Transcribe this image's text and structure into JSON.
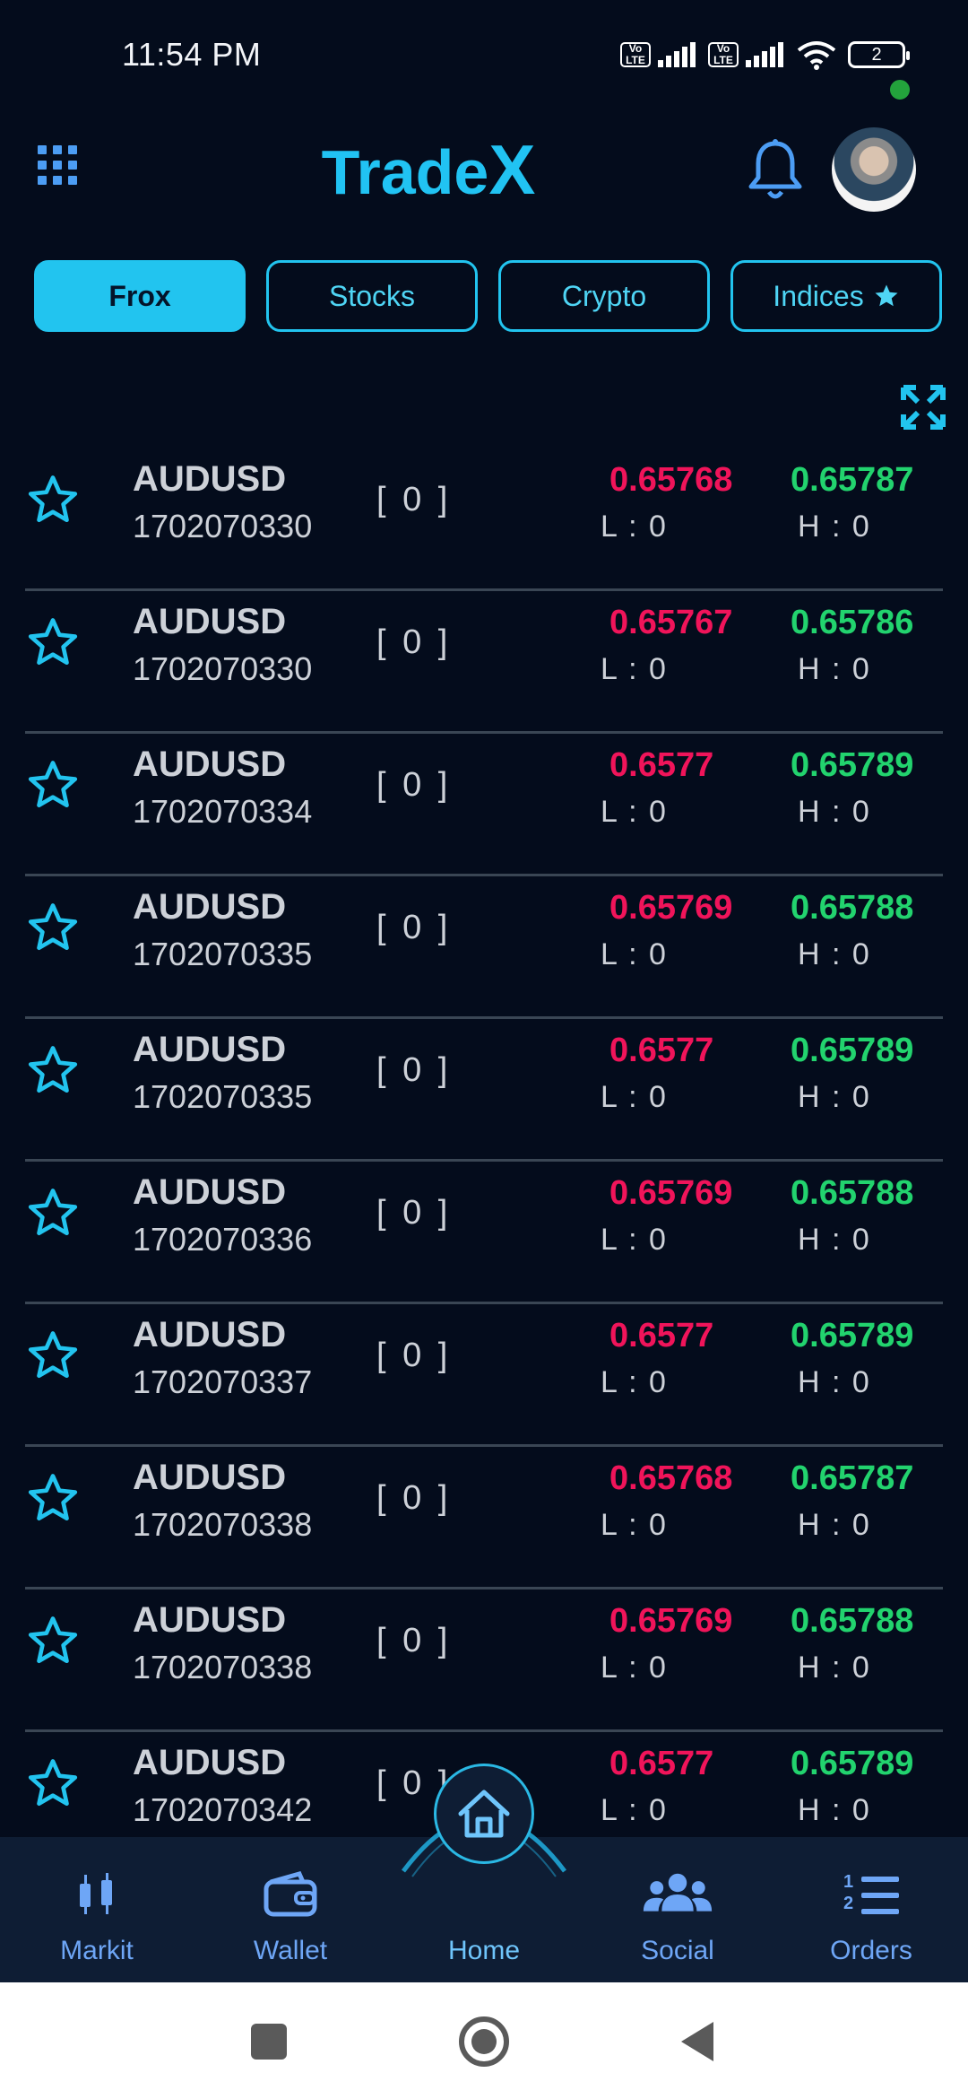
{
  "status_bar": {
    "time": "11:54 PM",
    "volte_top": "Vo",
    "volte_bottom": "LTE",
    "battery": "2"
  },
  "header": {
    "title_main": "Trade",
    "title_x": "X",
    "menu_icon": "grid-icon",
    "bell_icon": "bell-icon"
  },
  "tabs": [
    {
      "label": "Frox",
      "active": true
    },
    {
      "label": "Stocks",
      "active": false
    },
    {
      "label": "Crypto",
      "active": false
    },
    {
      "label": "Indices",
      "active": false,
      "icon": "star-icon"
    }
  ],
  "list": {
    "rows": [
      {
        "symbol": "AUDUSD",
        "timestamp": "1702070330",
        "count": "[ 0 ]",
        "bid": "0.65768",
        "ask": "0.65787",
        "low": "L : 0",
        "high": "H : 0"
      },
      {
        "symbol": "AUDUSD",
        "timestamp": "1702070330",
        "count": "[ 0 ]",
        "bid": "0.65767",
        "ask": "0.65786",
        "low": "L : 0",
        "high": "H : 0"
      },
      {
        "symbol": "AUDUSD",
        "timestamp": "1702070334",
        "count": "[ 0 ]",
        "bid": "0.6577",
        "ask": "0.65789",
        "low": "L : 0",
        "high": "H : 0"
      },
      {
        "symbol": "AUDUSD",
        "timestamp": "1702070335",
        "count": "[ 0 ]",
        "bid": "0.65769",
        "ask": "0.65788",
        "low": "L : 0",
        "high": "H : 0"
      },
      {
        "symbol": "AUDUSD",
        "timestamp": "1702070335",
        "count": "[ 0 ]",
        "bid": "0.6577",
        "ask": "0.65789",
        "low": "L : 0",
        "high": "H : 0"
      },
      {
        "symbol": "AUDUSD",
        "timestamp": "1702070336",
        "count": "[ 0 ]",
        "bid": "0.65769",
        "ask": "0.65788",
        "low": "L : 0",
        "high": "H : 0"
      },
      {
        "symbol": "AUDUSD",
        "timestamp": "1702070337",
        "count": "[ 0 ]",
        "bid": "0.6577",
        "ask": "0.65789",
        "low": "L : 0",
        "high": "H : 0"
      },
      {
        "symbol": "AUDUSD",
        "timestamp": "1702070338",
        "count": "[ 0 ]",
        "bid": "0.65768",
        "ask": "0.65787",
        "low": "L : 0",
        "high": "H : 0"
      },
      {
        "symbol": "AUDUSD",
        "timestamp": "1702070338",
        "count": "[ 0 ]",
        "bid": "0.65769",
        "ask": "0.65788",
        "low": "L : 0",
        "high": "H : 0"
      },
      {
        "symbol": "AUDUSD",
        "timestamp": "1702070342",
        "count": "[ 0 ]",
        "bid": "0.6577",
        "ask": "0.65789",
        "low": "L : 0",
        "high": "H : 0"
      }
    ]
  },
  "bottom_nav": [
    {
      "label": "Markit",
      "icon": "candlestick-icon"
    },
    {
      "label": "Wallet",
      "icon": "wallet-icon"
    },
    {
      "label": "Home",
      "icon": "home-icon",
      "active": true
    },
    {
      "label": "Social",
      "icon": "people-icon"
    },
    {
      "label": "Orders",
      "icon": "ordered-list-icon"
    }
  ],
  "colors": {
    "background": "#040c1c",
    "accent": "#22c4ef",
    "bid": "#f0145a",
    "ask": "#22d36e",
    "nav_background": "#0e1d34"
  }
}
